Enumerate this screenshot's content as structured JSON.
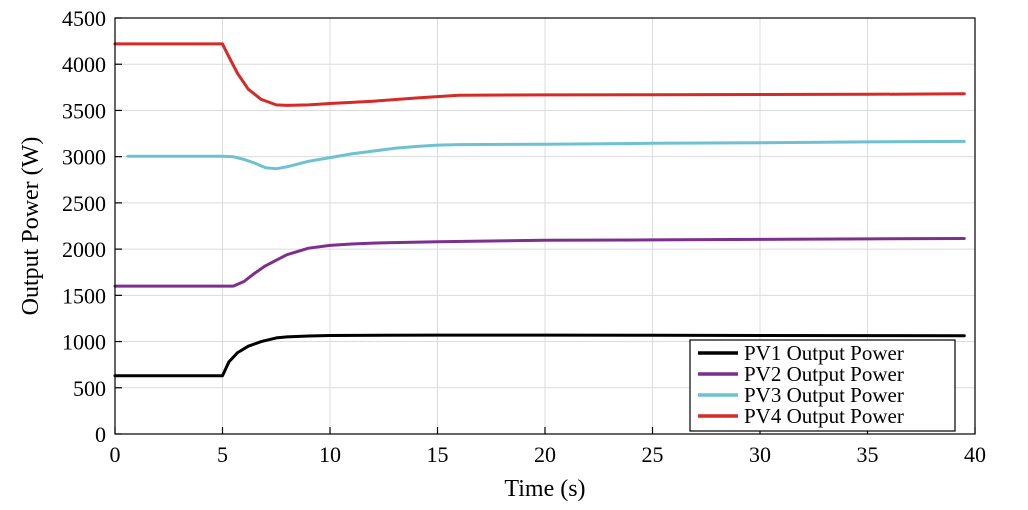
{
  "chart_data": {
    "type": "line",
    "title": "",
    "xlabel": "Time (s)",
    "ylabel": "Output Power (W)",
    "xlim": [
      0,
      40
    ],
    "ylim": [
      0,
      4500
    ],
    "xticks": [
      0,
      5,
      10,
      15,
      20,
      25,
      30,
      35,
      40
    ],
    "yticks": [
      0,
      500,
      1000,
      1500,
      2000,
      2500,
      3000,
      3500,
      4000,
      4500
    ],
    "grid": true,
    "legend_position": "bottom-right",
    "series": [
      {
        "name": "PV1 Output Power",
        "color": "#000000",
        "x": [
          0,
          5,
          5.3,
          5.7,
          6.2,
          6.8,
          7.5,
          8,
          9,
          10,
          15,
          20,
          25,
          30,
          35,
          39.5
        ],
        "y": [
          630,
          630,
          780,
          880,
          950,
          1000,
          1040,
          1050,
          1060,
          1065,
          1070,
          1070,
          1068,
          1066,
          1064,
          1062
        ]
      },
      {
        "name": "PV2 Output Power",
        "color": "#7e2f8e",
        "x": [
          0,
          5.5,
          6,
          6.5,
          7,
          7.5,
          8,
          9,
          10,
          11,
          12,
          15,
          20,
          25,
          30,
          35,
          39.5
        ],
        "y": [
          1600,
          1600,
          1650,
          1740,
          1820,
          1880,
          1940,
          2010,
          2040,
          2055,
          2065,
          2080,
          2095,
          2100,
          2105,
          2110,
          2115
        ]
      },
      {
        "name": "PV3 Output Power",
        "color": "#6dc1d2",
        "x": [
          0.6,
          5,
          5.5,
          6,
          6.5,
          7,
          7.5,
          8,
          8.5,
          9,
          10,
          11,
          12,
          13,
          14,
          15,
          16,
          20,
          25,
          30,
          35,
          39.5
        ],
        "y": [
          3005,
          3005,
          3000,
          2970,
          2930,
          2880,
          2870,
          2890,
          2920,
          2950,
          2990,
          3030,
          3060,
          3090,
          3110,
          3125,
          3130,
          3135,
          3145,
          3150,
          3160,
          3165
        ]
      },
      {
        "name": "PV4 Output Power",
        "color": "#d62a27",
        "x": [
          0,
          5,
          5.3,
          5.7,
          6.2,
          6.8,
          7.5,
          8,
          9,
          10,
          12,
          14,
          16,
          20,
          25,
          30,
          35,
          39.5
        ],
        "y": [
          4220,
          4220,
          4080,
          3900,
          3730,
          3620,
          3560,
          3555,
          3560,
          3575,
          3600,
          3635,
          3665,
          3668,
          3670,
          3672,
          3675,
          3680
        ]
      }
    ]
  }
}
